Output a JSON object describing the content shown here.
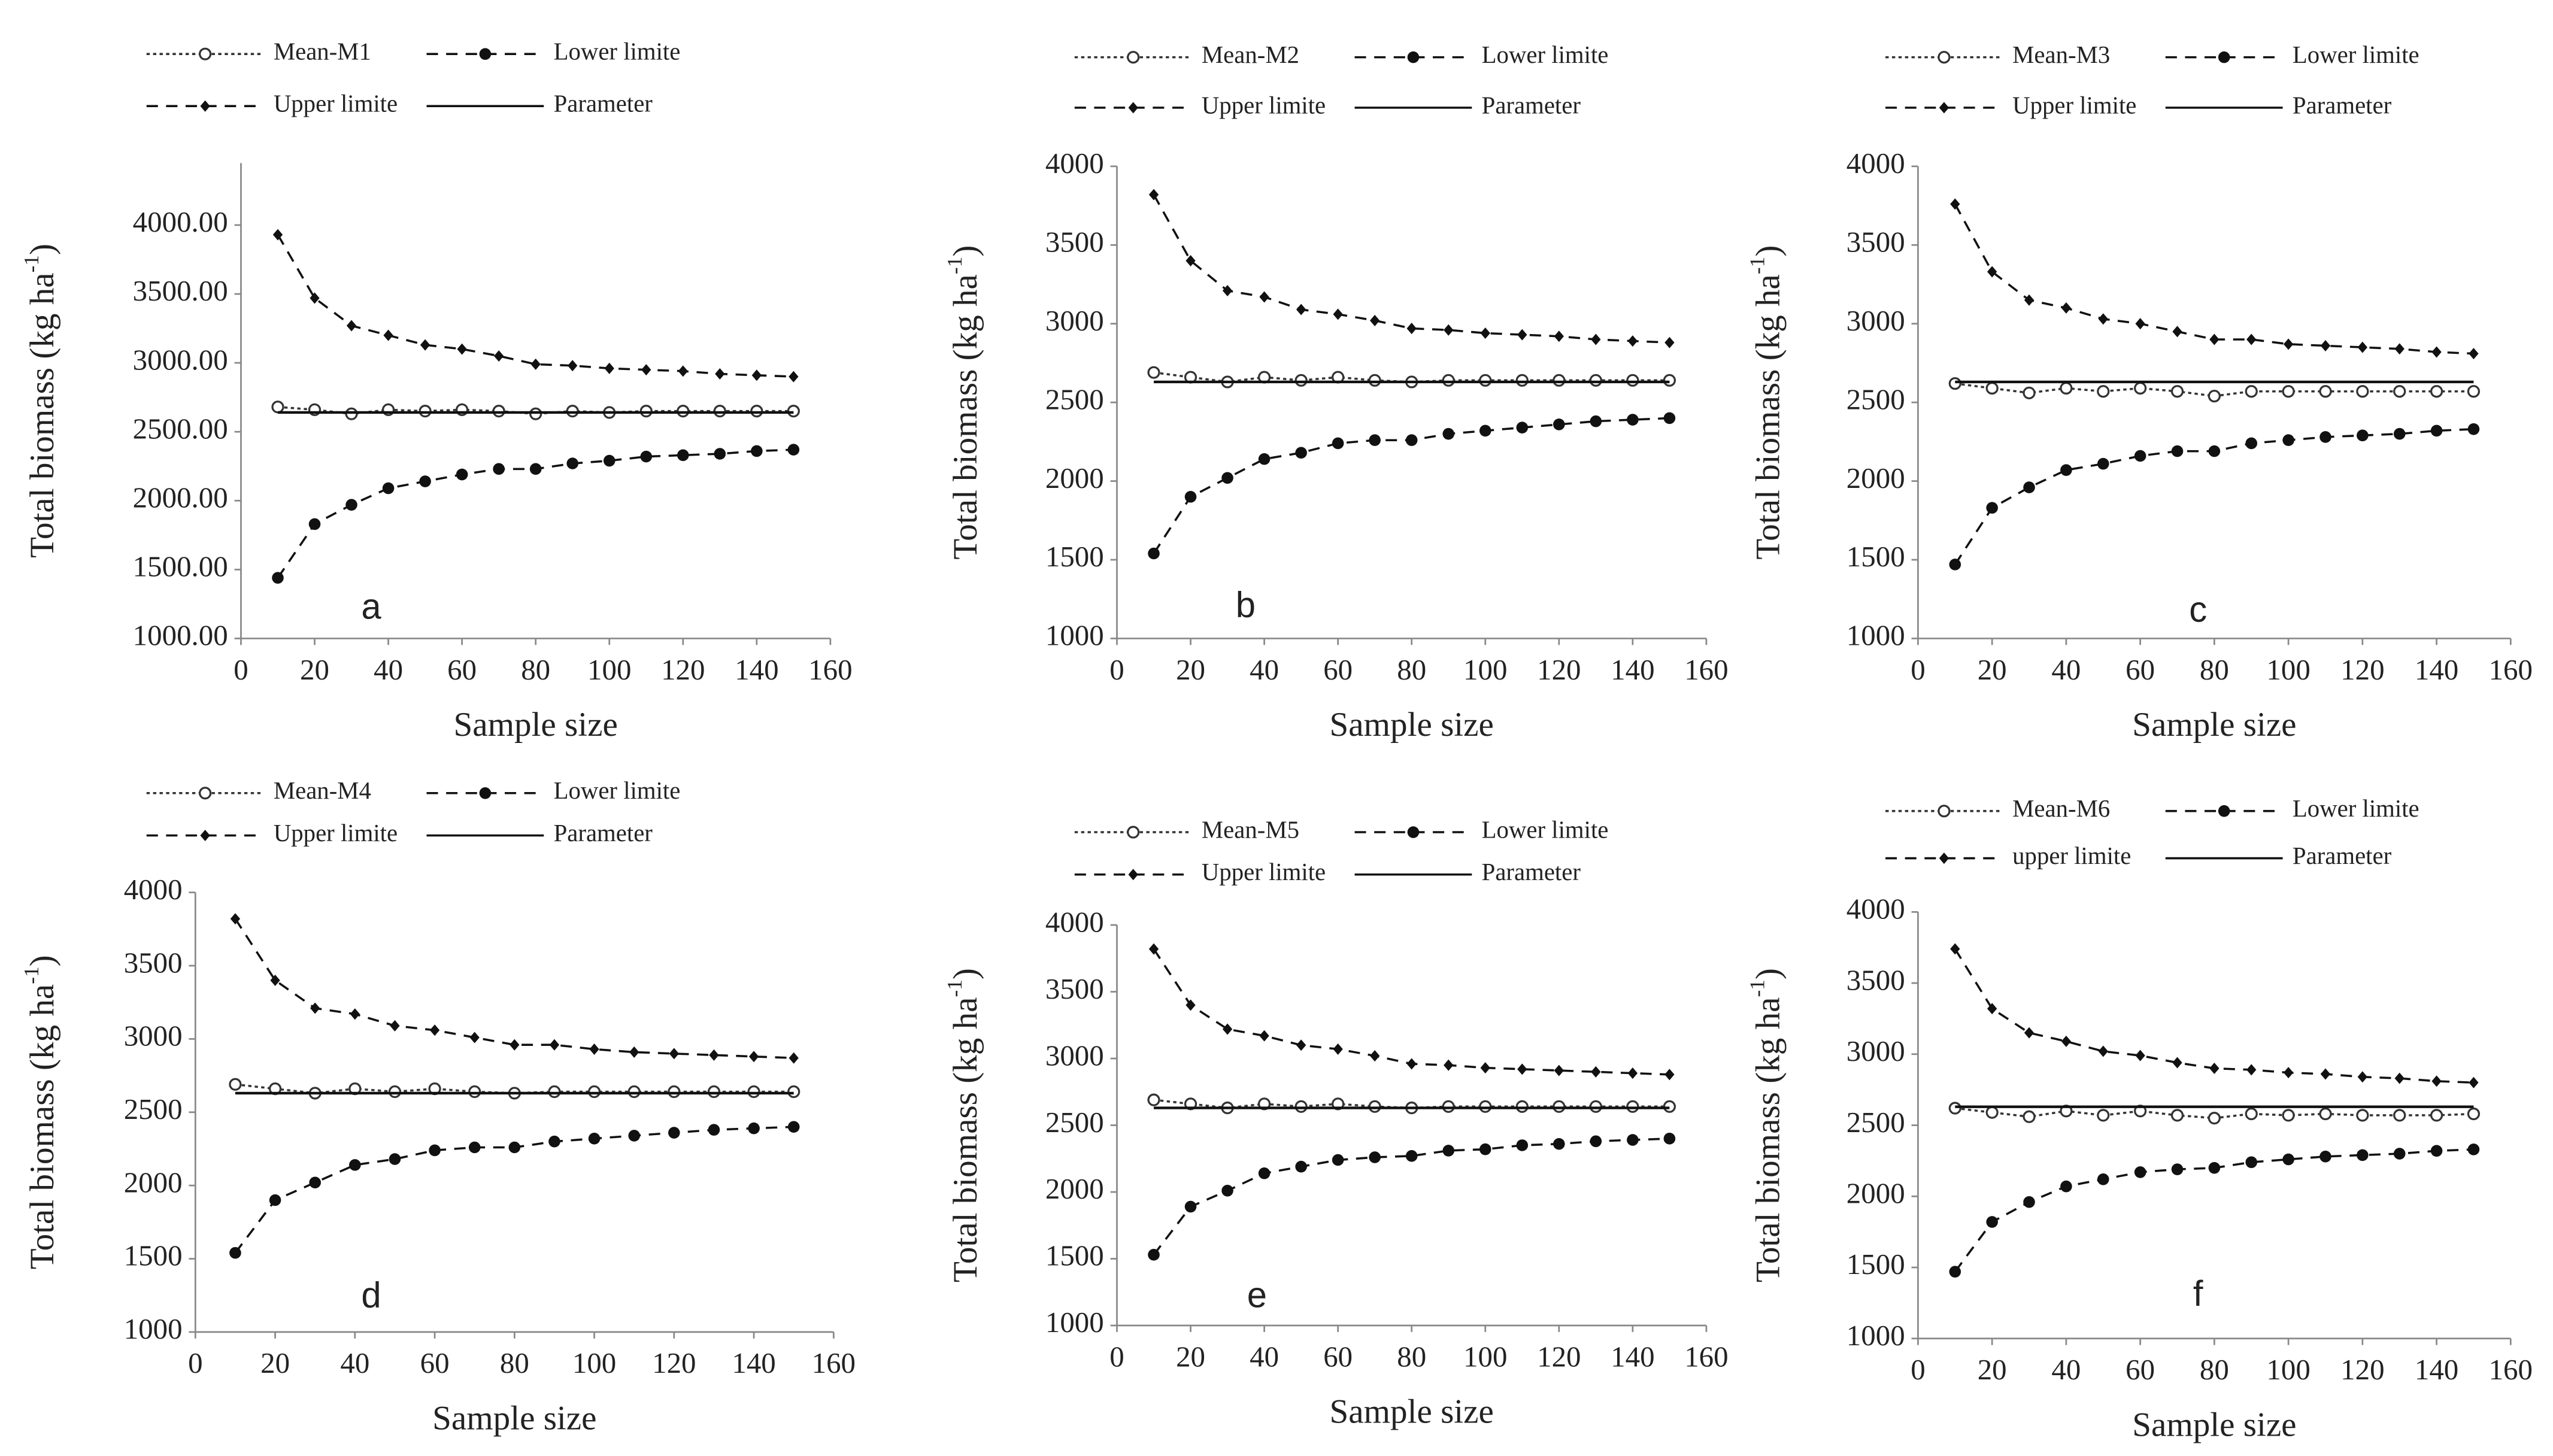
{
  "chart_data": [
    {
      "type": "line",
      "label": "a",
      "xlabel": "Sample size",
      "ylabel": [
        "Total biomass  (kg ha",
        "-1",
        ")"
      ],
      "x": [
        10,
        20,
        30,
        40,
        50,
        60,
        70,
        80,
        90,
        100,
        110,
        120,
        130,
        140,
        150
      ],
      "xlim": [
        0,
        160
      ],
      "xticks": [
        0,
        20,
        40,
        60,
        80,
        100,
        120,
        140,
        160
      ],
      "ylim": [
        1000,
        4450
      ],
      "yticks": [
        {
          "value": 1000,
          "label": "1000.00"
        },
        {
          "value": 1500,
          "label": "1500.00"
        },
        {
          "value": 2000,
          "label": "2000.00"
        },
        {
          "value": 2500,
          "label": "2500.00"
        },
        {
          "value": 3000,
          "label": "3000.00"
        },
        {
          "value": 3500,
          "label": "3500.00"
        },
        {
          "value": 4000,
          "label": "4000.00"
        }
      ],
      "grid": false,
      "series": [
        {
          "name": "Mean-M1",
          "color": "#333333",
          "values": [
            2680,
            2660,
            2630,
            2660,
            2650,
            2660,
            2650,
            2630,
            2650,
            2640,
            2650,
            2650,
            2650,
            2650,
            2650
          ]
        },
        {
          "name": "Lower limite",
          "color": "#111111",
          "values": [
            1440,
            1830,
            1970,
            2090,
            2140,
            2190,
            2230,
            2230,
            2270,
            2290,
            2320,
            2330,
            2340,
            2360,
            2370
          ]
        },
        {
          "name": "Upper limite",
          "color": "#111111",
          "values": [
            3930,
            3470,
            3270,
            3200,
            3130,
            3100,
            3050,
            2990,
            2980,
            2960,
            2950,
            2940,
            2920,
            2910,
            2900
          ]
        },
        {
          "name": "Parameter",
          "color": "#111111",
          "values": [
            2640,
            2640,
            2640,
            2640,
            2640,
            2640,
            2640,
            2640,
            2640,
            2640,
            2640,
            2640,
            2640,
            2640,
            2640
          ]
        }
      ]
    },
    {
      "type": "line",
      "label": "b",
      "xlabel": "Sample size",
      "ylabel": [
        "Total biomass (kg ha",
        "-1",
        ")"
      ],
      "x": [
        10,
        20,
        30,
        40,
        50,
        60,
        70,
        80,
        90,
        100,
        110,
        120,
        130,
        140,
        150
      ],
      "xlim": [
        0,
        160
      ],
      "xticks": [
        0,
        20,
        40,
        60,
        80,
        100,
        120,
        140,
        160
      ],
      "ylim": [
        1000,
        4000
      ],
      "yticks": [
        1000,
        1500,
        2000,
        2500,
        3000,
        3500,
        4000
      ],
      "grid": false,
      "series": [
        {
          "name": "Mean-M2",
          "color": "#333333",
          "values": [
            2690,
            2660,
            2630,
            2660,
            2640,
            2660,
            2640,
            2630,
            2640,
            2640,
            2640,
            2640,
            2640,
            2640,
            2640
          ]
        },
        {
          "name": "Lower limite",
          "color": "#111111",
          "values": [
            1540,
            1900,
            2020,
            2140,
            2180,
            2240,
            2260,
            2260,
            2300,
            2320,
            2340,
            2360,
            2380,
            2390,
            2400
          ]
        },
        {
          "name": "Upper limite",
          "color": "#111111",
          "values": [
            3820,
            3400,
            3210,
            3170,
            3090,
            3060,
            3020,
            2970,
            2960,
            2940,
            2930,
            2920,
            2900,
            2890,
            2880
          ]
        },
        {
          "name": "Parameter",
          "color": "#111111",
          "values": [
            2630,
            2630,
            2630,
            2630,
            2630,
            2630,
            2630,
            2630,
            2630,
            2630,
            2630,
            2630,
            2630,
            2630,
            2630
          ]
        }
      ]
    },
    {
      "type": "line",
      "label": "c",
      "xlabel": "Sample size",
      "ylabel": [
        "Total biomass (kg ha",
        "-1",
        ")"
      ],
      "x": [
        10,
        20,
        30,
        40,
        50,
        60,
        70,
        80,
        90,
        100,
        110,
        120,
        130,
        140,
        150
      ],
      "xlim": [
        0,
        160
      ],
      "xticks": [
        0,
        20,
        40,
        60,
        80,
        100,
        120,
        140,
        160
      ],
      "ylim": [
        1000,
        4000
      ],
      "yticks": [
        1000,
        1500,
        2000,
        2500,
        3000,
        3500,
        4000
      ],
      "grid": false,
      "series": [
        {
          "name": "Mean-M3",
          "color": "#333333",
          "values": [
            2620,
            2590,
            2560,
            2590,
            2570,
            2590,
            2570,
            2540,
            2570,
            2570,
            2570,
            2570,
            2570,
            2570,
            2570
          ]
        },
        {
          "name": "Lower limite",
          "color": "#111111",
          "values": [
            1470,
            1830,
            1960,
            2070,
            2110,
            2160,
            2190,
            2190,
            2240,
            2260,
            2280,
            2290,
            2300,
            2320,
            2330
          ]
        },
        {
          "name": "Upper limite",
          "color": "#111111",
          "values": [
            3760,
            3330,
            3150,
            3100,
            3030,
            3000,
            2950,
            2900,
            2900,
            2870,
            2860,
            2850,
            2840,
            2820,
            2810
          ]
        },
        {
          "name": "Parameter",
          "color": "#111111",
          "values": [
            2630,
            2630,
            2630,
            2630,
            2630,
            2630,
            2630,
            2630,
            2630,
            2630,
            2630,
            2630,
            2630,
            2630,
            2630
          ]
        }
      ]
    },
    {
      "type": "line",
      "label": "d",
      "xlabel": "Sample size",
      "ylabel": [
        "Total biomass (kg ha",
        "-1",
        ")"
      ],
      "x": [
        10,
        20,
        30,
        40,
        50,
        60,
        70,
        80,
        90,
        100,
        110,
        120,
        130,
        140,
        150
      ],
      "xlim": [
        0,
        160
      ],
      "xticks": [
        0,
        20,
        40,
        60,
        80,
        100,
        120,
        140,
        160
      ],
      "ylim": [
        1000,
        4000
      ],
      "yticks": [
        1000,
        1500,
        2000,
        2500,
        3000,
        3500,
        4000
      ],
      "grid": false,
      "series": [
        {
          "name": "Mean-M4",
          "color": "#333333",
          "values": [
            2690,
            2660,
            2630,
            2660,
            2640,
            2660,
            2640,
            2630,
            2640,
            2640,
            2640,
            2640,
            2640,
            2640,
            2640
          ]
        },
        {
          "name": "Lower limite",
          "color": "#111111",
          "values": [
            1540,
            1900,
            2020,
            2140,
            2180,
            2240,
            2260,
            2260,
            2300,
            2320,
            2340,
            2360,
            2380,
            2390,
            2400
          ]
        },
        {
          "name": "Upper limite",
          "color": "#111111",
          "values": [
            3820,
            3400,
            3210,
            3170,
            3090,
            3060,
            3010,
            2960,
            2960,
            2930,
            2910,
            2900,
            2890,
            2880,
            2870
          ]
        },
        {
          "name": "Parameter",
          "color": "#111111",
          "values": [
            2630,
            2630,
            2630,
            2630,
            2630,
            2630,
            2630,
            2630,
            2630,
            2630,
            2630,
            2630,
            2630,
            2630,
            2630
          ]
        }
      ]
    },
    {
      "type": "line",
      "label": "e",
      "xlabel": "Sample size",
      "ylabel": [
        "Total biomass (kg ha",
        "-1",
        ")"
      ],
      "x": [
        10,
        20,
        30,
        40,
        50,
        60,
        70,
        80,
        90,
        100,
        110,
        120,
        130,
        140,
        150
      ],
      "xlim": [
        0,
        160
      ],
      "xticks": [
        0,
        20,
        40,
        60,
        80,
        100,
        120,
        140,
        160
      ],
      "ylim": [
        1000,
        4000
      ],
      "yticks": [
        1000,
        1500,
        2000,
        2500,
        3000,
        3500,
        4000
      ],
      "grid": false,
      "series": [
        {
          "name": "Mean-M5",
          "color": "#333333",
          "values": [
            2690,
            2660,
            2630,
            2660,
            2640,
            2660,
            2640,
            2630,
            2640,
            2640,
            2640,
            2640,
            2640,
            2640,
            2640
          ]
        },
        {
          "name": "Lower limite",
          "color": "#111111",
          "values": [
            1530,
            1890,
            2010,
            2140,
            2190,
            2240,
            2260,
            2270,
            2310,
            2320,
            2350,
            2360,
            2380,
            2390,
            2400
          ]
        },
        {
          "name": "Upper limite",
          "color": "#111111",
          "values": [
            3820,
            3400,
            3220,
            3170,
            3100,
            3070,
            3020,
            2960,
            2950,
            2930,
            2920,
            2910,
            2900,
            2890,
            2880
          ]
        },
        {
          "name": "Parameter",
          "color": "#111111",
          "values": [
            2630,
            2630,
            2630,
            2630,
            2630,
            2630,
            2630,
            2630,
            2630,
            2630,
            2630,
            2630,
            2630,
            2630,
            2630
          ]
        }
      ]
    },
    {
      "type": "line",
      "label": "f",
      "xlabel": "Sample size",
      "ylabel": [
        "Total biomass (kg ha",
        "-1",
        ")"
      ],
      "x": [
        10,
        20,
        30,
        40,
        50,
        60,
        70,
        80,
        90,
        100,
        110,
        120,
        130,
        140,
        150
      ],
      "xlim": [
        0,
        160
      ],
      "xticks": [
        0,
        20,
        40,
        60,
        80,
        100,
        120,
        140,
        160
      ],
      "ylim": [
        1000,
        4000
      ],
      "yticks": [
        1000,
        1500,
        2000,
        2500,
        3000,
        3500,
        4000
      ],
      "grid": false,
      "series": [
        {
          "name": "Mean-M6",
          "color": "#333333",
          "values": [
            2620,
            2590,
            2560,
            2600,
            2570,
            2600,
            2570,
            2550,
            2580,
            2570,
            2580,
            2570,
            2570,
            2570,
            2580
          ]
        },
        {
          "name": "Lower limite",
          "color": "#111111",
          "values": [
            1470,
            1820,
            1960,
            2070,
            2120,
            2170,
            2190,
            2200,
            2240,
            2260,
            2280,
            2290,
            2300,
            2320,
            2330
          ]
        },
        {
          "name": "upper limite",
          "color": "#111111",
          "values": [
            3740,
            3320,
            3150,
            3090,
            3020,
            2990,
            2940,
            2900,
            2890,
            2870,
            2860,
            2840,
            2830,
            2810,
            2800
          ]
        },
        {
          "name": "Parameter",
          "color": "#111111",
          "values": [
            2630,
            2630,
            2630,
            2630,
            2630,
            2630,
            2630,
            2630,
            2630,
            2630,
            2630,
            2630,
            2630,
            2630,
            2630
          ]
        }
      ]
    }
  ]
}
